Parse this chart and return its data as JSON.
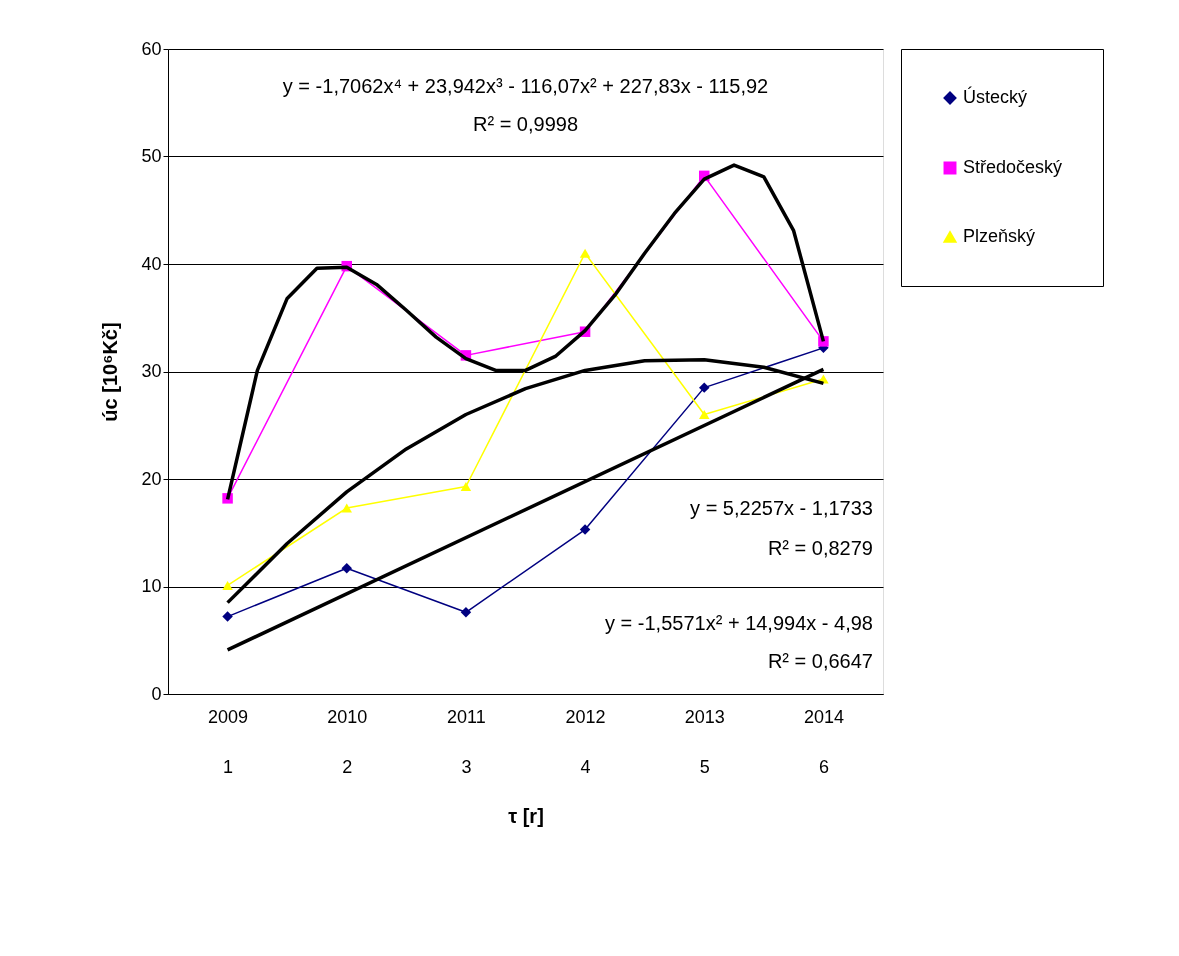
{
  "chart_data": {
    "type": "line",
    "xlabel": "τ [r]",
    "ylabel": "úc [10⁶Kč]",
    "x": [
      1,
      2,
      3,
      4,
      5,
      6
    ],
    "xlim": [
      0.5,
      6.5
    ],
    "xticks": [
      1,
      2,
      3,
      4,
      5,
      6
    ],
    "x2lim": [
      2008.5,
      2014.5
    ],
    "x2ticks": [
      2009,
      2010,
      2011,
      2012,
      2013,
      2014
    ],
    "ylim": [
      0,
      60
    ],
    "yticks": [
      0,
      10,
      20,
      30,
      40,
      50,
      60
    ],
    "grid": "y",
    "legend": "right",
    "series": [
      {
        "name": "Ústecký",
        "color": "#000080",
        "marker": "diamond",
        "values": [
          7.2,
          11.7,
          7.6,
          15.3,
          28.5,
          32.2
        ]
      },
      {
        "name": "Středočeský",
        "color": "#ff00ff",
        "marker": "square",
        "values": [
          18.2,
          39.8,
          31.5,
          33.7,
          48.2,
          32.8
        ]
      },
      {
        "name": "Plzeňský",
        "color": "#ffff00",
        "marker": "triangle",
        "values": [
          10.1,
          17.3,
          19.3,
          41.0,
          26.0,
          29.3
        ]
      },
      {
        "type": "line",
        "color": "#000000",
        "x": [
          1,
          1.25,
          1.5,
          1.75,
          2,
          2.25,
          2.5,
          2.75,
          3,
          3.25,
          3.5,
          3.75,
          4,
          4.25,
          4.5,
          4.75,
          5,
          5.25,
          5.5,
          5.75,
          6
        ],
        "values": [
          18.1,
          30.1,
          36.8,
          39.6,
          39.7,
          38.1,
          35.7,
          33.2,
          31.2,
          30.1,
          30.1,
          31.4,
          33.8,
          37.1,
          41.0,
          44.7,
          47.9,
          49.2,
          48.1,
          43.1,
          32.8
        ]
      },
      {
        "type": "line",
        "color": "#000000",
        "x": [
          1,
          1.5,
          2,
          2.5,
          3,
          3.5,
          4,
          4.5,
          5,
          5.5,
          6
        ],
        "values": [
          8.5,
          14.0,
          18.8,
          22.8,
          26.0,
          28.4,
          30.1,
          31.0,
          31.1,
          30.4,
          28.9
        ]
      },
      {
        "type": "line",
        "color": "#000000",
        "x": [
          1,
          6
        ],
        "values": [
          4.1,
          30.2
        ]
      }
    ],
    "annotations": [
      "y = -1,7062x⁴ + 23,942x³ - 116,07x² + 227,83x - 115,92",
      "R² = 0,9998",
      "y = 5,2257x - 1,1733",
      "R² = 0,8279",
      "y = -1,5571x² + 14,994x - 4,98",
      "R² = 0,6647"
    ]
  }
}
